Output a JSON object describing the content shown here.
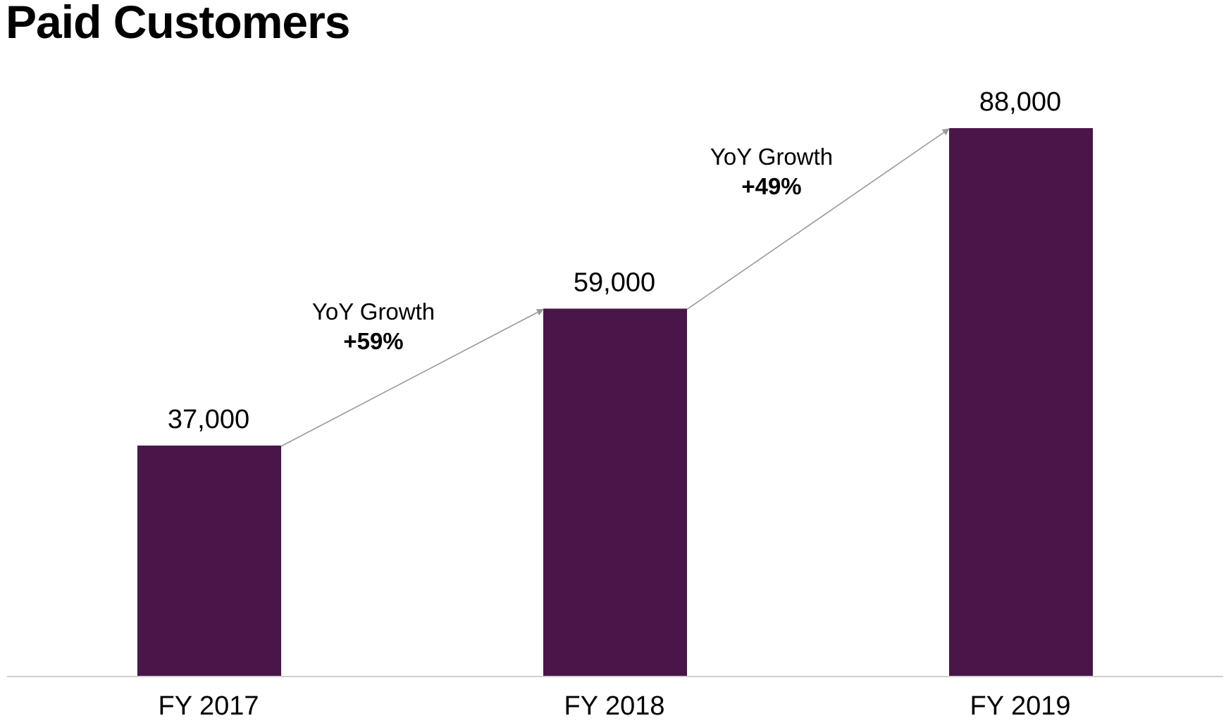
{
  "chart_data": {
    "type": "bar",
    "title": "Paid Customers",
    "categories": [
      "FY 2017",
      "FY 2018",
      "FY 2019"
    ],
    "values": [
      37000,
      59000,
      88000
    ],
    "data_labels": [
      "37,000",
      "59,000",
      "88,000"
    ],
    "ylim": [
      0,
      88000
    ],
    "grid": false,
    "legend": "none",
    "bar_color": "#4a1548",
    "axis_color": "#d0d0d0",
    "arrow_color": "#999999",
    "annotations": [
      {
        "from": "FY 2017",
        "to": "FY 2018",
        "label": "YoY Growth",
        "value": "+59%"
      },
      {
        "from": "FY 2018",
        "to": "FY 2019",
        "label": "YoY Growth",
        "value": "+49%"
      }
    ]
  }
}
